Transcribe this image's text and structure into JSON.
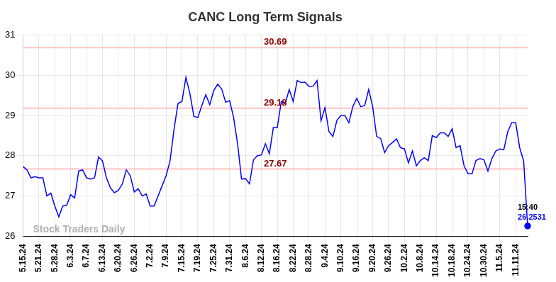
{
  "chart_data": {
    "type": "line",
    "title": "CANC Long Term Signals",
    "categories": [
      "5.15.24",
      null,
      null,
      null,
      "5.21.24",
      null,
      null,
      null,
      "5.28.24",
      null,
      null,
      null,
      "6.3.24",
      null,
      null,
      null,
      "6.7.24",
      null,
      null,
      null,
      "6.13.24",
      null,
      null,
      null,
      "6.20.24",
      null,
      null,
      null,
      "6.26.24",
      null,
      null,
      null,
      "7.2.24",
      null,
      null,
      null,
      "7.9.24",
      null,
      null,
      null,
      "7.15.24",
      null,
      null,
      null,
      "7.19.24",
      null,
      null,
      null,
      "7.25.24",
      null,
      null,
      null,
      "7.31.24",
      null,
      null,
      null,
      "8.6.24",
      null,
      null,
      null,
      "8.12.24",
      null,
      null,
      null,
      "8.16.24",
      null,
      null,
      null,
      "8.22.24",
      null,
      null,
      null,
      "8.28.24",
      null,
      null,
      null,
      "9.4.24",
      null,
      null,
      null,
      "9.10.24",
      null,
      null,
      null,
      "9.16.24",
      null,
      null,
      null,
      "9.20.24",
      null,
      null,
      null,
      "9.26.24",
      null,
      null,
      null,
      "10.2.24",
      null,
      null,
      null,
      "10.8.24",
      null,
      null,
      null,
      "10.14.24",
      null,
      null,
      null,
      "10.18.24",
      null,
      null,
      null,
      "10.24.24",
      null,
      null,
      null,
      "10.30.24",
      null,
      null,
      null,
      "11.5.24",
      null,
      null,
      null,
      "11.11.24",
      null,
      null,
      null
    ],
    "values": [
      27.73,
      27.65,
      27.45,
      27.48,
      27.45,
      27.45,
      27.0,
      27.07,
      26.75,
      26.48,
      26.75,
      26.77,
      27.03,
      26.95,
      27.62,
      27.65,
      27.45,
      27.42,
      27.45,
      27.97,
      27.87,
      27.45,
      27.2,
      27.08,
      27.14,
      27.3,
      27.65,
      27.5,
      27.1,
      27.18,
      27.0,
      27.05,
      26.75,
      26.75,
      27.0,
      27.25,
      27.5,
      27.87,
      28.65,
      29.3,
      29.35,
      29.95,
      29.55,
      28.98,
      28.95,
      29.25,
      29.52,
      29.27,
      29.62,
      29.78,
      29.66,
      29.33,
      29.37,
      28.95,
      28.3,
      27.42,
      27.43,
      27.3,
      27.9,
      28.0,
      28.02,
      28.3,
      28.05,
      28.7,
      28.7,
      29.35,
      29.3,
      29.65,
      29.35,
      29.87,
      29.82,
      29.83,
      29.72,
      29.73,
      29.87,
      28.87,
      29.2,
      28.6,
      28.48,
      28.88,
      29.0,
      29.0,
      28.82,
      29.22,
      29.43,
      29.22,
      29.25,
      29.65,
      29.22,
      28.48,
      28.43,
      28.08,
      28.25,
      28.33,
      28.42,
      28.2,
      28.17,
      27.82,
      28.12,
      27.75,
      27.88,
      27.95,
      27.88,
      28.5,
      28.45,
      28.57,
      28.57,
      28.48,
      28.67,
      28.2,
      28.25,
      27.75,
      27.55,
      27.55,
      27.88,
      27.93,
      27.9,
      27.62,
      27.93,
      28.12,
      28.17,
      28.15,
      28.6,
      28.82,
      28.82,
      28.2,
      27.87,
      26.2531
    ],
    "color": "#0000ff",
    "ylim": [
      26,
      31
    ],
    "yticks": [
      26,
      27,
      28,
      29,
      30,
      31
    ],
    "grid": true,
    "signal_levels": [
      30.69,
      29.18,
      27.67
    ],
    "last_point_label": {
      "time": "15:40",
      "value": 26.2531
    },
    "watermark": "Stock Traders Daily"
  }
}
